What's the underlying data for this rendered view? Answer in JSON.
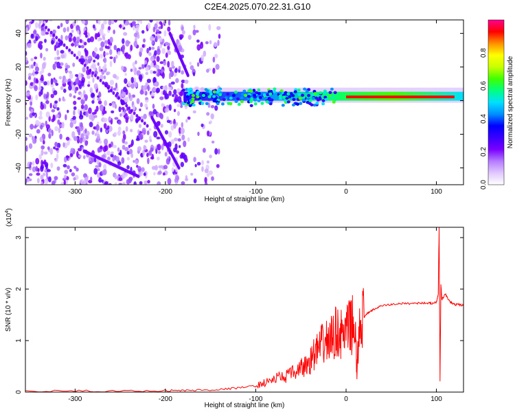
{
  "figure": {
    "title": "C2E4.2025.070.22.31.G10"
  },
  "chart_data": [
    {
      "type": "heatmap",
      "xlabel": "Height of straight line (km)",
      "ylabel": "Frequency (Hz)",
      "xlim": [
        -355,
        130
      ],
      "ylim": [
        -50,
        48
      ],
      "x_ticks": [
        -300,
        -200,
        -100,
        0,
        100
      ],
      "y_ticks": [
        -40,
        -20,
        0,
        20,
        40
      ],
      "colorbar": {
        "label": "Normalized spectral amplitude",
        "range": [
          0,
          1
        ],
        "ticks": [
          0.0,
          0.2,
          0.4,
          0.6,
          0.8
        ],
        "tick_labels": [
          "0.0",
          "0.2",
          "0.4",
          "0.6",
          "0.8"
        ],
        "colormap": "rainbow",
        "colors": [
          "#ffffff",
          "#e1c8ff",
          "#b47cff",
          "#7a00ff",
          "#3a00ff",
          "#0000ff",
          "#0090ff",
          "#00e0ff",
          "#00ff80",
          "#40ff00",
          "#c8ff00",
          "#ffff00",
          "#ff9000",
          "#ff0000",
          "#ff0090"
        ]
      },
      "features": {
        "noise_region_x": [
          -355,
          -180
        ],
        "band_start_x": -180,
        "band_center_freq": 2,
        "band_peak_region_x": [
          0,
          120
        ]
      }
    },
    {
      "type": "line",
      "xlabel": "Height of straight line (km)",
      "ylabel": "SNR (10 * v/v)",
      "y_scale_label": "(x10",
      "y_scale_exponent": "4",
      "xlim": [
        -355,
        130
      ],
      "ylim": [
        0,
        3.2
      ],
      "x_ticks": [
        -300,
        -200,
        -100,
        0,
        100
      ],
      "y_ticks": [
        0,
        1,
        2,
        3
      ],
      "line_color": "#ff0000",
      "series": [
        {
          "x": [
            -355,
            -300,
            -250,
            -200,
            -180,
            -160,
            -140,
            -120,
            -100,
            -90,
            -80,
            -70,
            -60,
            -50,
            -45,
            -40,
            -35,
            -30,
            -25,
            -20,
            -15,
            -10,
            -5,
            0,
            5,
            10,
            12,
            15,
            20,
            25,
            30,
            40,
            50,
            60,
            70,
            80,
            90,
            95,
            100,
            102,
            103,
            104,
            105,
            106,
            110,
            115,
            120,
            125,
            130
          ],
          "y": [
            0.02,
            0.02,
            0.02,
            0.03,
            0.03,
            0.04,
            0.05,
            0.08,
            0.12,
            0.18,
            0.25,
            0.3,
            0.35,
            0.45,
            0.5,
            0.6,
            0.75,
            0.85,
            0.95,
            1.0,
            1.05,
            1.2,
            1.1,
            1.15,
            1.3,
            1.3,
            0.35,
            1.4,
            1.45,
            1.55,
            1.6,
            1.68,
            1.7,
            1.72,
            1.72,
            1.73,
            1.73,
            1.72,
            1.75,
            1.9,
            3.2,
            0.2,
            2.1,
            1.8,
            1.9,
            1.75,
            1.7,
            1.7,
            1.68
          ]
        }
      ]
    }
  ]
}
